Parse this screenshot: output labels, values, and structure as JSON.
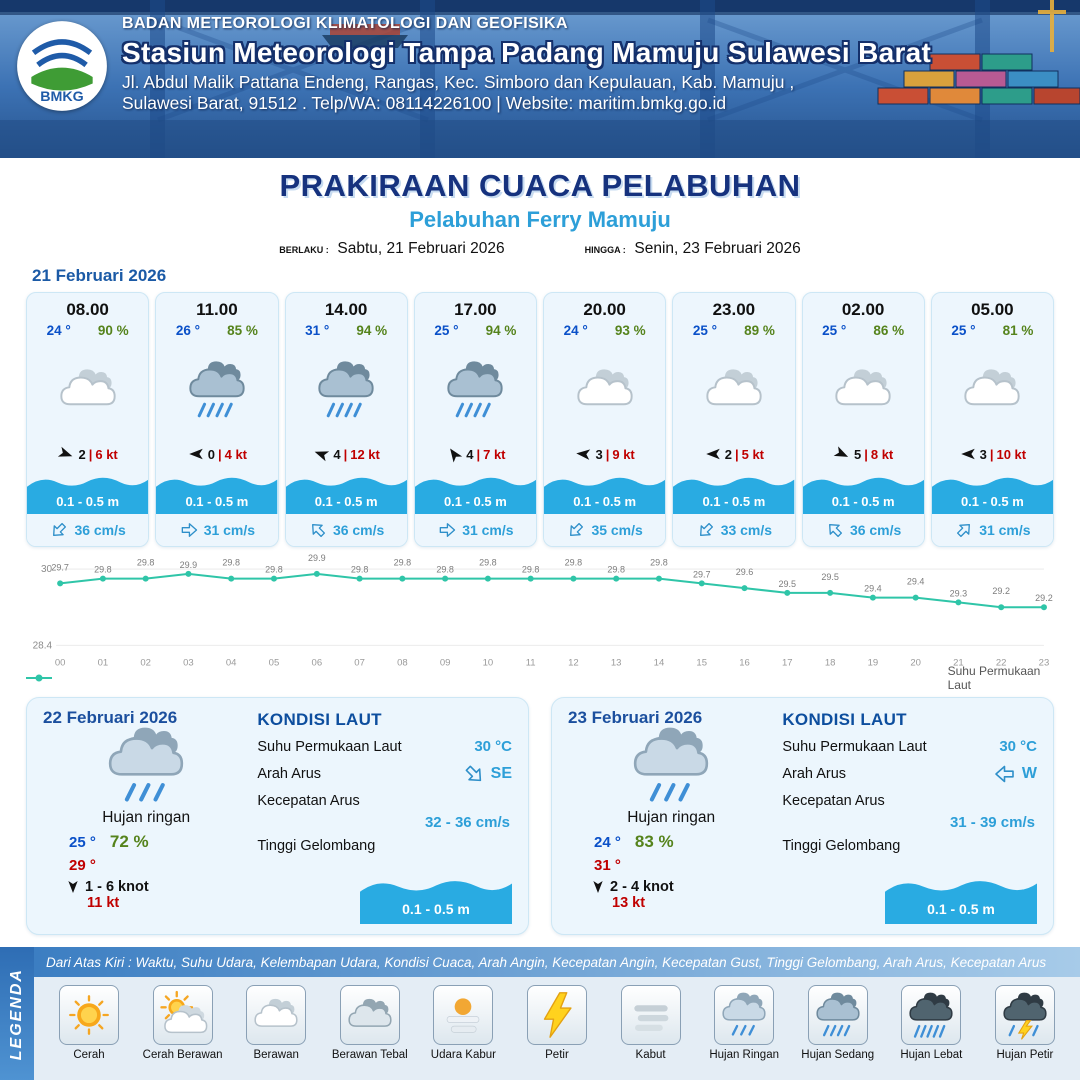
{
  "header": {
    "agency": "BADAN METEOROLOGI KLIMATOLOGI DAN GEOFISIKA",
    "station": "Stasiun Meteorologi Tampa Padang Mamuju Sulawesi Barat",
    "address1": "Jl. Abdul Malik Pattana Endeng, Rangas, Kec. Simboro dan Kepulauan, Kab. Mamuju ,",
    "address2": "Sulawesi Barat, 91512 . Telp/WA: 08114226100 | Website: maritim.bmkg.go.id",
    "logo_text": "BMKG"
  },
  "title": {
    "main": "PRAKIRAAN CUACA PELABUHAN",
    "sub": "Pelabuhan Ferry Mamuju"
  },
  "validity": {
    "berlaku_label": "BERLAKU :",
    "berlaku_value": "Sabtu, 21 Februari 2026",
    "hingga_label": "HINGGA :",
    "hingga_value": "Senin, 23 Februari 2026"
  },
  "hourly": {
    "date": "21 Februari 2026",
    "cards": [
      {
        "time": "08.00",
        "temp": "24 °",
        "humidity": "90 %",
        "icon": "berawan",
        "wind_deg": 20,
        "wind_val": "2",
        "wind_kt": "6 kt",
        "wave": "0.1 - 0.5 m",
        "current_deg": 135,
        "current": "36 cm/s"
      },
      {
        "time": "11.00",
        "temp": "26 °",
        "humidity": "85 %",
        "icon": "hujan-sedang",
        "wind_deg": 180,
        "wind_val": "0",
        "wind_kt": "4 kt",
        "wave": "0.1 - 0.5 m",
        "current_deg": 0,
        "current": "31 cm/s"
      },
      {
        "time": "14.00",
        "temp": "31 °",
        "humidity": "94 %",
        "icon": "hujan-sedang",
        "wind_deg": 200,
        "wind_val": "4",
        "wind_kt": "12 kt",
        "wave": "0.1 - 0.5 m",
        "current_deg": 225,
        "current": "36 cm/s"
      },
      {
        "time": "17.00",
        "temp": "25 °",
        "humidity": "94 %",
        "icon": "hujan-sedang",
        "wind_deg": 235,
        "wind_val": "4",
        "wind_kt": "7 kt",
        "wave": "0.1 - 0.5 m",
        "current_deg": 0,
        "current": "31 cm/s"
      },
      {
        "time": "20.00",
        "temp": "24 °",
        "humidity": "93 %",
        "icon": "berawan",
        "wind_deg": 185,
        "wind_val": "3",
        "wind_kt": "9 kt",
        "wave": "0.1 - 0.5 m",
        "current_deg": 135,
        "current": "35 cm/s"
      },
      {
        "time": "23.00",
        "temp": "25 °",
        "humidity": "89 %",
        "icon": "berawan",
        "wind_deg": 180,
        "wind_val": "2",
        "wind_kt": "5 kt",
        "wave": "0.1 - 0.5 m",
        "current_deg": 135,
        "current": "33 cm/s"
      },
      {
        "time": "02.00",
        "temp": "25 °",
        "humidity": "86 %",
        "icon": "berawan",
        "wind_deg": 25,
        "wind_val": "5",
        "wind_kt": "8 kt",
        "wave": "0.1 - 0.5 m",
        "current_deg": 225,
        "current": "36 cm/s"
      },
      {
        "time": "05.00",
        "temp": "25 °",
        "humidity": "81 %",
        "icon": "berawan",
        "wind_deg": 180,
        "wind_val": "3",
        "wind_kt": "10 kt",
        "wave": "0.1 - 0.5 m",
        "current_deg": 315,
        "current": "31 cm/s"
      }
    ]
  },
  "chart_data": {
    "type": "line",
    "x": [
      "00",
      "01",
      "02",
      "03",
      "04",
      "05",
      "06",
      "07",
      "08",
      "09",
      "10",
      "11",
      "12",
      "13",
      "14",
      "15",
      "16",
      "17",
      "18",
      "19",
      "20",
      "21",
      "22",
      "23"
    ],
    "values": [
      29.7,
      29.8,
      29.8,
      29.9,
      29.8,
      29.8,
      29.9,
      29.8,
      29.8,
      29.8,
      29.8,
      29.8,
      29.8,
      29.8,
      29.8,
      29.7,
      29.6,
      29.5,
      29.5,
      29.4,
      29.4,
      29.3,
      29.2,
      29.2
    ],
    "series_name": "Suhu Permukaan Laut",
    "title": "",
    "xlabel": "",
    "ylabel": "",
    "ylim": [
      28.4,
      30
    ],
    "yticks": [
      "30",
      "28.4"
    ],
    "line_color": "#2fc5a8",
    "legend_position": "bottom",
    "grid": false
  },
  "days": [
    {
      "date": "22 Februari 2026",
      "icon": "hujan-ringan",
      "condition": "Hujan ringan",
      "temp_min": "25 °",
      "humidity": "72 %",
      "temp_max": "29 °",
      "wind_deg": 90,
      "wind_range": "1  - 6 knot",
      "gust": "11 kt",
      "sea": {
        "title": "KONDISI LAUT",
        "sst_label": "Suhu Permukaan Laut",
        "sst": "30 °C",
        "current_dir_label": "Arah Arus",
        "current_dir": "SE",
        "current_deg": 45,
        "current_speed_label": "Kecepatan Arus",
        "current_speed": "32  - 36 cm/s",
        "wave_label": "Tinggi Gelombang",
        "wave": "0.1 - 0.5 m"
      }
    },
    {
      "date": "23 Februari 2026",
      "icon": "hujan-ringan",
      "condition": "Hujan ringan",
      "temp_min": "24 °",
      "humidity": "83 %",
      "temp_max": "31 °",
      "wind_deg": 90,
      "wind_range": "2  - 4 knot",
      "gust": "13 kt",
      "sea": {
        "title": "KONDISI LAUT",
        "sst_label": "Suhu Permukaan Laut",
        "sst": "30 °C",
        "current_dir_label": "Arah Arus",
        "current_dir": "W",
        "current_deg": 180,
        "current_speed_label": "Kecepatan Arus",
        "current_speed": "31  - 39 cm/s",
        "wave_label": "Tinggi Gelombang",
        "wave": "0.1 - 0.5 m"
      }
    }
  ],
  "legend": {
    "title": "LEGENDA",
    "description": "Dari Atas Kiri : Waktu, Suhu Udara, Kelembapan Udara, Kondisi Cuaca, Arah Angin, Kecepatan Angin, Kecepatan Gust, Tinggi Gelombang, Arah Arus, Kecepatan Arus",
    "items": [
      {
        "label": "Cerah",
        "icon": "cerah"
      },
      {
        "label": "Cerah Berawan",
        "icon": "cerah-berawan"
      },
      {
        "label": "Berawan",
        "icon": "berawan"
      },
      {
        "label": "Berawan Tebal",
        "icon": "berawan-tebal"
      },
      {
        "label": "Udara Kabur",
        "icon": "udara-kabur"
      },
      {
        "label": "Petir",
        "icon": "petir"
      },
      {
        "label": "Kabut",
        "icon": "kabut"
      },
      {
        "label": "Hujan Ringan",
        "icon": "hujan-ringan"
      },
      {
        "label": "Hujan Sedang",
        "icon": "hujan-sedang"
      },
      {
        "label": "Hujan Lebat",
        "icon": "hujan-lebat"
      },
      {
        "label": "Hujan Petir",
        "icon": "hujan-petir"
      }
    ]
  },
  "colors": {
    "header_blue": "#2a5c9e",
    "title_navy": "#16327e",
    "accent_blue": "#2d9fd8",
    "wave_blue": "#29abe2",
    "temp_blue": "#0a50c8",
    "humidity_green": "#55831c",
    "alert_red": "#c00000",
    "chart_teal": "#2fc5a8"
  }
}
